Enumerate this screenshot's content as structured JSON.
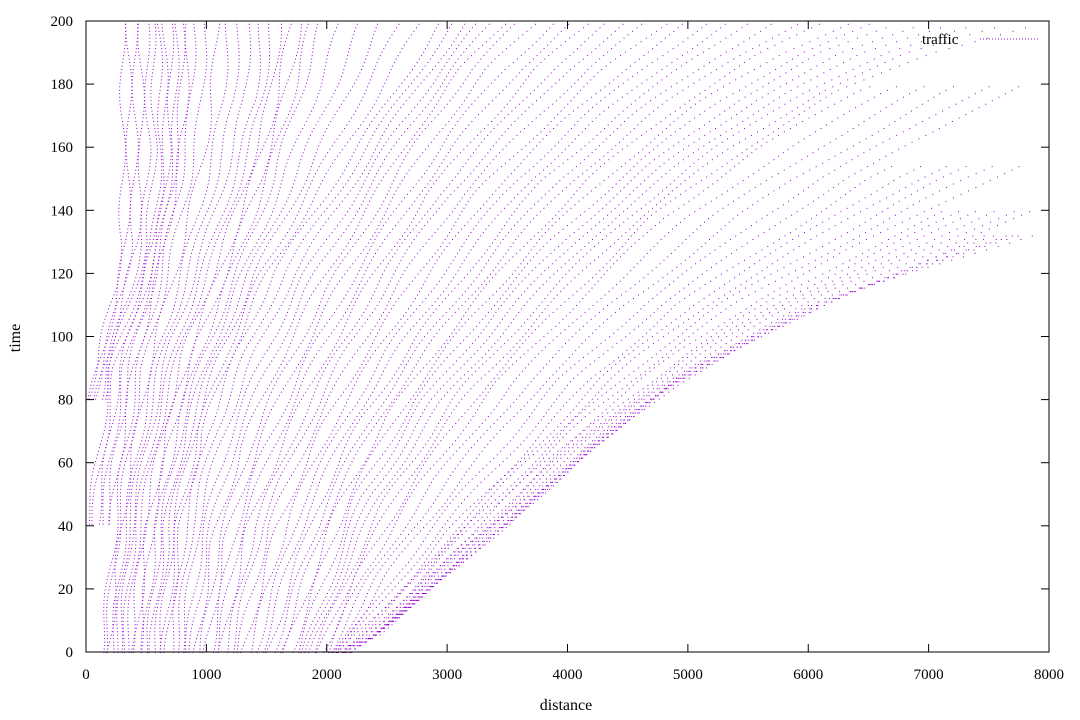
{
  "chart_data": {
    "type": "scatter",
    "title": "",
    "xlabel": "distance",
    "ylabel": "time",
    "xlim": [
      0,
      8000
    ],
    "ylim": [
      0,
      200
    ],
    "xticks": [
      0,
      1000,
      2000,
      3000,
      4000,
      5000,
      6000,
      7000,
      8000
    ],
    "yticks": [
      0,
      20,
      40,
      60,
      80,
      100,
      120,
      140,
      160,
      180,
      200
    ],
    "grid": false,
    "legend": {
      "position": "top-right"
    },
    "series": [
      {
        "name": "traffic",
        "color": "#9400d3",
        "marker": "dot",
        "description_free_trajectories": [
          {
            "points": [
              [
                300,
                200
              ],
              [
                300,
                160
              ],
              [
                290,
                130
              ],
              [
                230,
                115
              ],
              [
                80,
                90
              ],
              [
                0,
                80
              ]
            ]
          },
          {
            "points": [
              [
                600,
                200
              ],
              [
                620,
                160
              ],
              [
                550,
                130
              ],
              [
                380,
                110
              ],
              [
                200,
                90
              ],
              [
                90,
                60
              ],
              [
                0,
                40
              ]
            ]
          },
          {
            "points": [
              [
                900,
                200
              ],
              [
                860,
                170
              ],
              [
                780,
                150
              ],
              [
                620,
                120
              ],
              [
                430,
                90
              ],
              [
                300,
                60
              ],
              [
                180,
                20
              ],
              [
                120,
                0
              ]
            ]
          },
          {
            "points": [
              [
                1450,
                200
              ],
              [
                1400,
                175
              ],
              [
                1300,
                160
              ],
              [
                1050,
                130
              ],
              [
                760,
                100
              ],
              [
                560,
                70
              ],
              [
                400,
                40
              ],
              [
                300,
                0
              ]
            ]
          },
          {
            "points": [
              [
                1950,
                200
              ],
              [
                1800,
                180
              ],
              [
                1550,
                150
              ],
              [
                1250,
                120
              ],
              [
                980,
                95
              ],
              [
                780,
                70
              ],
              [
                620,
                40
              ],
              [
                500,
                0
              ]
            ]
          },
          {
            "points": [
              [
                2950,
                200
              ],
              [
                2600,
                180
              ],
              [
                2250,
                160
              ],
              [
                1900,
                140
              ],
              [
                1550,
                120
              ],
              [
                1250,
                95
              ],
              [
                1000,
                70
              ],
              [
                820,
                40
              ],
              [
                700,
                0
              ]
            ]
          },
          {
            "points": [
              [
                3600,
                200
              ],
              [
                3200,
                185
              ],
              [
                2800,
                165
              ],
              [
                2400,
                140
              ],
              [
                2000,
                115
              ],
              [
                1650,
                90
              ],
              [
                1350,
                65
              ],
              [
                1100,
                35
              ],
              [
                950,
                0
              ]
            ]
          },
          {
            "points": [
              [
                4500,
                200
              ],
              [
                4000,
                185
              ],
              [
                3500,
                165
              ],
              [
                3000,
                145
              ],
              [
                2550,
                120
              ],
              [
                2150,
                95
              ],
              [
                1800,
                70
              ],
              [
                1450,
                40
              ],
              [
                1200,
                0
              ]
            ]
          },
          {
            "points": [
              [
                5500,
                200
              ],
              [
                5000,
                187
              ],
              [
                4400,
                170
              ],
              [
                3800,
                150
              ],
              [
                3250,
                125
              ],
              [
                2750,
                100
              ],
              [
                2300,
                75
              ],
              [
                1900,
                45
              ],
              [
                1500,
                0
              ]
            ]
          },
          {
            "points": [
              [
                6800,
                200
              ],
              [
                6100,
                190
              ],
              [
                5400,
                175
              ],
              [
                4700,
                155
              ],
              [
                4000,
                132
              ],
              [
                3400,
                108
              ],
              [
                2800,
                80
              ],
              [
                2300,
                50
              ],
              [
                1800,
                0
              ]
            ]
          },
          {
            "points": [
              [
                8000,
                198
              ],
              [
                7200,
                190
              ],
              [
                6400,
                178
              ],
              [
                5600,
                160
              ],
              [
                4800,
                138
              ],
              [
                4100,
                112
              ],
              [
                3400,
                85
              ],
              [
                2800,
                55
              ],
              [
                2300,
                25
              ],
              [
                2000,
                0
              ]
            ]
          },
          {
            "points": [
              [
                8000,
                180
              ],
              [
                7300,
                165
              ],
              [
                6500,
                150
              ],
              [
                5700,
                130
              ],
              [
                4900,
                110
              ],
              [
                4200,
                87
              ],
              [
                3600,
                62
              ],
              [
                3000,
                38
              ],
              [
                2500,
                15
              ],
              [
                2100,
                0
              ]
            ]
          },
          {
            "points": [
              [
                8000,
                155
              ],
              [
                7300,
                143
              ],
              [
                6500,
                128
              ],
              [
                5700,
                112
              ],
              [
                5000,
                95
              ],
              [
                4300,
                75
              ],
              [
                3700,
                55
              ],
              [
                3100,
                33
              ],
              [
                2600,
                13
              ],
              [
                2200,
                0
              ]
            ]
          },
          {
            "points": [
              [
                8000,
                140
              ],
              [
                7200,
                128
              ],
              [
                6400,
                115
              ],
              [
                5600,
                100
              ],
              [
                4900,
                85
              ],
              [
                4200,
                65
              ],
              [
                3600,
                45
              ],
              [
                3000,
                25
              ],
              [
                2400,
                5
              ],
              [
                2000,
                0
              ]
            ]
          },
          {
            "points": [
              [
                8000,
                133
              ],
              [
                7000,
                122
              ],
              [
                6000,
                110
              ],
              [
                5000,
                90
              ],
              [
                4200,
                65
              ],
              [
                3500,
                40
              ],
              [
                2800,
                20
              ],
              [
                2300,
                2
              ]
            ]
          }
        ]
      }
    ],
    "x_ticks_labels": [
      "0",
      "1000",
      "2000",
      "3000",
      "4000",
      "5000",
      "6000",
      "7000",
      "8000"
    ],
    "y_ticks_labels": [
      "0",
      "20",
      "40",
      "60",
      "80",
      "100",
      "120",
      "140",
      "160",
      "180",
      "200"
    ]
  }
}
